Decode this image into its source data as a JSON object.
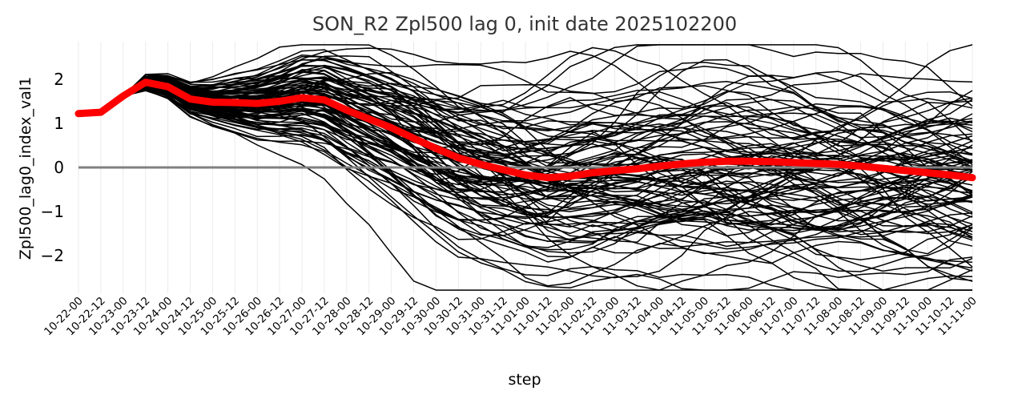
{
  "chart_data": {
    "type": "line",
    "title": "SON_R2 Zpl500 lag 0, init date 2025102200",
    "xlabel": "step",
    "ylabel": "Zpl500_lag0_index_val1",
    "ylim": [
      -2.85,
      2.85
    ],
    "yticks": [
      -2,
      -1,
      0,
      1,
      2
    ],
    "grid": "vertical",
    "zero_line": true,
    "x": [
      "10-22-00",
      "10-22-12",
      "10-23-00",
      "10-23-12",
      "10-24-00",
      "10-24-12",
      "10-25-00",
      "10-25-12",
      "10-26-00",
      "10-26-12",
      "10-27-00",
      "10-27-12",
      "10-28-00",
      "10-28-12",
      "10-29-00",
      "10-29-12",
      "10-30-00",
      "10-30-12",
      "10-31-00",
      "10-31-12",
      "11-01-00",
      "11-01-12",
      "11-02-00",
      "11-02-12",
      "11-03-00",
      "11-03-12",
      "11-04-00",
      "11-04-12",
      "11-05-00",
      "11-05-12",
      "11-06-00",
      "11-06-12",
      "11-07-00",
      "11-07-12",
      "11-08-00",
      "11-08-12",
      "11-09-00",
      "11-09-12",
      "11-10-00",
      "11-10-12",
      "11-11-00"
    ],
    "mean_series": {
      "color": "#ff0000",
      "values": [
        1.22,
        1.25,
        1.62,
        1.93,
        1.83,
        1.55,
        1.48,
        1.47,
        1.45,
        1.5,
        1.58,
        1.53,
        1.3,
        1.1,
        0.9,
        0.66,
        0.43,
        0.22,
        0.07,
        -0.05,
        -0.17,
        -0.23,
        -0.2,
        -0.12,
        -0.07,
        -0.03,
        0.03,
        0.08,
        0.12,
        0.14,
        0.14,
        0.13,
        0.11,
        0.09,
        0.07,
        0.03,
        -0.02,
        -0.07,
        -0.12,
        -0.17,
        -0.23
      ]
    },
    "ensemble": {
      "color": "#000000",
      "members": 100,
      "shared_start": [
        1.22,
        1.25,
        1.62
      ]
    },
    "colors": {
      "ensemble": "#000000",
      "mean": "#ff0000",
      "zero_line": "#808080",
      "grid": "#ebebeb"
    }
  }
}
